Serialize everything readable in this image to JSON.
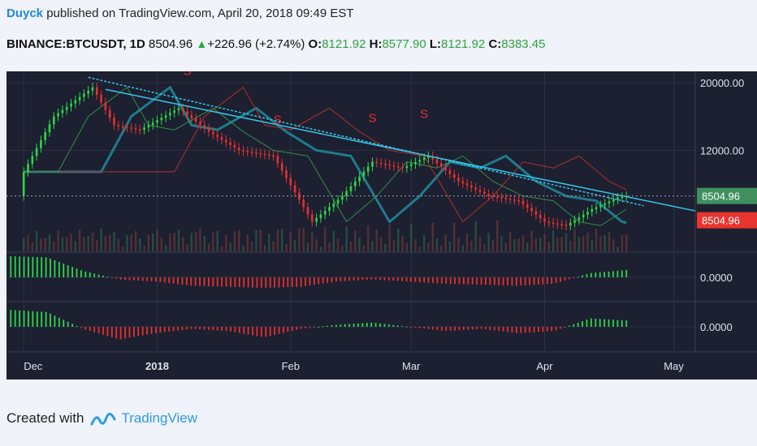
{
  "header": {
    "author": "Duyck",
    "published_text": " published on TradingView.com, April 20, 2018 09:49 EST",
    "symbol": "BINANCE:BTCUSDT, 1D",
    "price": "8504.96",
    "change": "+226.96 (+2.74%)",
    "o_label": "O:",
    "o_value": "8121.92",
    "h_label": "H:",
    "h_value": "8577.90",
    "l_label": "L:",
    "l_value": "8121.92",
    "c_label": "C:",
    "c_value": "8383.45"
  },
  "footer": {
    "created_with": "Created with",
    "brand": "TradingView"
  },
  "colors": {
    "background": "#1c2030",
    "bull": "#2fd64a",
    "bear": "#e8302f",
    "ma_teal": "#1f8c9e",
    "trendline": "#36c4e8",
    "price_tag_green": "#3f8f5f",
    "price_tag_red": "#e8342f"
  },
  "chart_data": {
    "type": "line",
    "title": "",
    "x_ticks": [
      "Dec",
      "2018",
      "Feb",
      "Mar",
      "Apr",
      "May"
    ],
    "y_ticks": [
      "20000.00",
      "12000.00"
    ],
    "price_labels": [
      "8504.96",
      "8504.96"
    ],
    "indicator_ticks": [
      "0.0000",
      "0.0000"
    ],
    "signal_markers": [
      "S",
      "S",
      "S",
      "S",
      "S"
    ],
    "series": [
      {
        "x": [
          "2017-12-01",
          "2017-12-08",
          "2017-12-17",
          "2017-12-22",
          "2017-12-28",
          "2018-01-06",
          "2018-01-13",
          "2018-01-20",
          "2018-01-28",
          "2018-02-06",
          "2018-02-13",
          "2018-02-20",
          "2018-02-27",
          "2018-03-05",
          "2018-03-12",
          "2018-03-19",
          "2018-03-26",
          "2018-04-01",
          "2018-04-06",
          "2018-04-12",
          "2018-04-18",
          "2018-04-20"
        ],
        "values": [
          10200,
          15500,
          19300,
          14500,
          14000,
          16500,
          13800,
          12000,
          11500,
          7000,
          8500,
          11000,
          10500,
          11500,
          9500,
          8500,
          8200,
          7000,
          6800,
          7700,
          8400,
          8504.96
        ]
      }
    ],
    "indicators": [
      {
        "values": [
          1.0,
          0.95,
          0.3,
          -0.1,
          -0.2,
          -0.4,
          -0.45,
          -0.5,
          -0.45,
          -0.2,
          -0.1,
          -0.2,
          -0.3,
          -0.35,
          -0.4,
          -0.3,
          0.2,
          0.35
        ]
      },
      {
        "values": [
          0.8,
          0.7,
          -0.1,
          -0.6,
          -0.3,
          -0.1,
          -0.2,
          -0.5,
          -0.1,
          0.1,
          0.2,
          0.0,
          -0.2,
          -0.1,
          -0.3,
          -0.2,
          0.4,
          0.3
        ]
      }
    ]
  }
}
